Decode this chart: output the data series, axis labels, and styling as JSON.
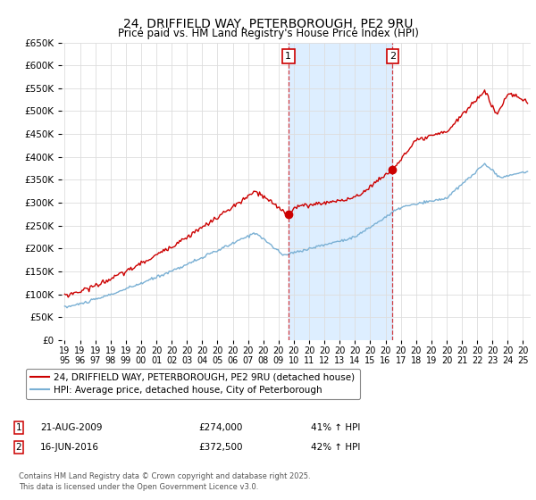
{
  "title": "24, DRIFFIELD WAY, PETERBOROUGH, PE2 9RU",
  "subtitle": "Price paid vs. HM Land Registry's House Price Index (HPI)",
  "legend_line1": "24, DRIFFIELD WAY, PETERBOROUGH, PE2 9RU (detached house)",
  "legend_line2": "HPI: Average price, detached house, City of Peterborough",
  "footnote1": "Contains HM Land Registry data © Crown copyright and database right 2025.",
  "footnote2": "This data is licensed under the Open Government Licence v3.0.",
  "red_color": "#cc0000",
  "blue_color": "#7ab0d4",
  "shading_color": "#ddeeff",
  "background_color": "#ffffff",
  "grid_color": "#dddddd",
  "marker1_date_x": 2009.64,
  "marker1_y": 274000,
  "marker2_date_x": 2016.46,
  "marker2_y": 372500,
  "table_row1": [
    "1",
    "21-AUG-2009",
    "£274,000",
    "41% ↑ HPI"
  ],
  "table_row2": [
    "2",
    "16-JUN-2016",
    "£372,500",
    "42% ↑ HPI"
  ],
  "ylim": [
    0,
    650000
  ],
  "xlim": [
    1994.8,
    2025.5
  ],
  "yticks": [
    0,
    50000,
    100000,
    150000,
    200000,
    250000,
    300000,
    350000,
    400000,
    450000,
    500000,
    550000,
    600000,
    650000
  ]
}
